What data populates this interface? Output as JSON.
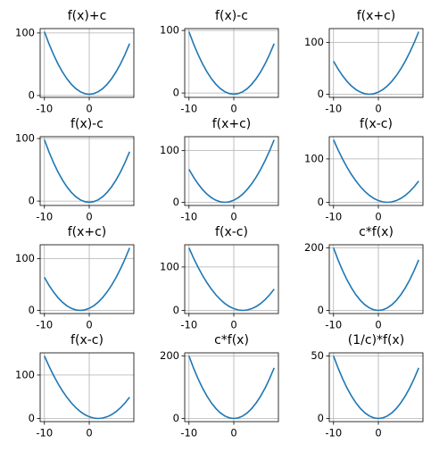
{
  "chart_data": [
    {
      "type": "line",
      "title": "f(x)+c",
      "color": "#1f77b4",
      "grid": true,
      "x": [
        -10,
        -9,
        -8,
        -7,
        -6,
        -5,
        -4,
        -3,
        -2,
        -1,
        0,
        1,
        2,
        3,
        4,
        5,
        6,
        7,
        8,
        9
      ],
      "values": [
        102,
        83,
        66,
        51,
        38,
        27,
        18,
        11,
        6,
        3,
        2,
        3,
        6,
        11,
        18,
        27,
        38,
        51,
        66,
        83
      ],
      "xlim": [
        -10.95,
        9.95
      ],
      "xticks": [
        -10,
        0
      ],
      "ylim": [
        -3,
        107
      ],
      "yticks": [
        0,
        100
      ]
    },
    {
      "type": "line",
      "title": "f(x)-c",
      "color": "#1f77b4",
      "grid": true,
      "x": [
        -10,
        -9,
        -8,
        -7,
        -6,
        -5,
        -4,
        -3,
        -2,
        -1,
        0,
        1,
        2,
        3,
        4,
        5,
        6,
        7,
        8,
        9
      ],
      "values": [
        98,
        79,
        62,
        47,
        34,
        23,
        14,
        7,
        2,
        -1,
        -2,
        -1,
        2,
        7,
        14,
        23,
        34,
        47,
        62,
        79
      ],
      "xlim": [
        -10.95,
        9.95
      ],
      "xticks": [
        -10,
        0
      ],
      "ylim": [
        -7,
        103
      ],
      "yticks": [
        0,
        100
      ]
    },
    {
      "type": "line",
      "title": "f(x+c)",
      "color": "#1f77b4",
      "grid": true,
      "x": [
        -10,
        -9,
        -8,
        -7,
        -6,
        -5,
        -4,
        -3,
        -2,
        -1,
        0,
        1,
        2,
        3,
        4,
        5,
        6,
        7,
        8,
        9
      ],
      "values": [
        64,
        49,
        36,
        25,
        16,
        9,
        4,
        1,
        0,
        1,
        4,
        9,
        16,
        25,
        36,
        49,
        64,
        81,
        100,
        121
      ],
      "xlim": [
        -10.95,
        9.95
      ],
      "xticks": [
        -10,
        0
      ],
      "ylim": [
        -6.05,
        127.05
      ],
      "yticks": [
        0,
        100
      ]
    },
    {
      "type": "line",
      "title": "f(x)-c",
      "color": "#1f77b4",
      "grid": true,
      "x": [
        -10,
        -9,
        -8,
        -7,
        -6,
        -5,
        -4,
        -3,
        -2,
        -1,
        0,
        1,
        2,
        3,
        4,
        5,
        6,
        7,
        8,
        9
      ],
      "values": [
        98,
        79,
        62,
        47,
        34,
        23,
        14,
        7,
        2,
        -1,
        -2,
        -1,
        2,
        7,
        14,
        23,
        34,
        47,
        62,
        79
      ],
      "xlim": [
        -10.95,
        9.95
      ],
      "xticks": [
        -10,
        0
      ],
      "ylim": [
        -7,
        103
      ],
      "yticks": [
        0,
        100
      ]
    },
    {
      "type": "line",
      "title": "f(x+c)",
      "color": "#1f77b4",
      "grid": true,
      "x": [
        -10,
        -9,
        -8,
        -7,
        -6,
        -5,
        -4,
        -3,
        -2,
        -1,
        0,
        1,
        2,
        3,
        4,
        5,
        6,
        7,
        8,
        9
      ],
      "values": [
        64,
        49,
        36,
        25,
        16,
        9,
        4,
        1,
        0,
        1,
        4,
        9,
        16,
        25,
        36,
        49,
        64,
        81,
        100,
        121
      ],
      "xlim": [
        -10.95,
        9.95
      ],
      "xticks": [
        -10,
        0
      ],
      "ylim": [
        -6.05,
        127.05
      ],
      "yticks": [
        0,
        100
      ]
    },
    {
      "type": "line",
      "title": "f(x-c)",
      "color": "#1f77b4",
      "grid": true,
      "x": [
        -10,
        -9,
        -8,
        -7,
        -6,
        -5,
        -4,
        -3,
        -2,
        -1,
        0,
        1,
        2,
        3,
        4,
        5,
        6,
        7,
        8,
        9
      ],
      "values": [
        144,
        121,
        100,
        81,
        64,
        49,
        36,
        25,
        16,
        9,
        4,
        1,
        0,
        1,
        4,
        9,
        16,
        25,
        36,
        49
      ],
      "xlim": [
        -10.95,
        9.95
      ],
      "xticks": [
        -10,
        0
      ],
      "ylim": [
        -7.2,
        151.2
      ],
      "yticks": [
        0,
        100
      ]
    },
    {
      "type": "line",
      "title": "f(x+c)",
      "color": "#1f77b4",
      "grid": true,
      "x": [
        -10,
        -9,
        -8,
        -7,
        -6,
        -5,
        -4,
        -3,
        -2,
        -1,
        0,
        1,
        2,
        3,
        4,
        5,
        6,
        7,
        8,
        9
      ],
      "values": [
        64,
        49,
        36,
        25,
        16,
        9,
        4,
        1,
        0,
        1,
        4,
        9,
        16,
        25,
        36,
        49,
        64,
        81,
        100,
        121
      ],
      "xlim": [
        -10.95,
        9.95
      ],
      "xticks": [
        -10,
        0
      ],
      "ylim": [
        -6.05,
        127.05
      ],
      "yticks": [
        0,
        100
      ]
    },
    {
      "type": "line",
      "title": "f(x-c)",
      "color": "#1f77b4",
      "grid": true,
      "x": [
        -10,
        -9,
        -8,
        -7,
        -6,
        -5,
        -4,
        -3,
        -2,
        -1,
        0,
        1,
        2,
        3,
        4,
        5,
        6,
        7,
        8,
        9
      ],
      "values": [
        144,
        121,
        100,
        81,
        64,
        49,
        36,
        25,
        16,
        9,
        4,
        1,
        0,
        1,
        4,
        9,
        16,
        25,
        36,
        49
      ],
      "xlim": [
        -10.95,
        9.95
      ],
      "xticks": [
        -10,
        0
      ],
      "ylim": [
        -7.2,
        151.2
      ],
      "yticks": [
        0,
        100
      ]
    },
    {
      "type": "line",
      "title": "c*f(x)",
      "color": "#1f77b4",
      "grid": true,
      "x": [
        -10,
        -9,
        -8,
        -7,
        -6,
        -5,
        -4,
        -3,
        -2,
        -1,
        0,
        1,
        2,
        3,
        4,
        5,
        6,
        7,
        8,
        9
      ],
      "values": [
        200,
        162,
        128,
        98,
        72,
        50,
        32,
        18,
        8,
        2,
        0,
        2,
        8,
        18,
        32,
        50,
        72,
        98,
        128,
        162
      ],
      "xlim": [
        -10.95,
        9.95
      ],
      "xticks": [
        -10,
        0
      ],
      "ylim": [
        -10,
        210
      ],
      "yticks": [
        0,
        200
      ]
    },
    {
      "type": "line",
      "title": "f(x-c)",
      "color": "#1f77b4",
      "grid": true,
      "x": [
        -10,
        -9,
        -8,
        -7,
        -6,
        -5,
        -4,
        -3,
        -2,
        -1,
        0,
        1,
        2,
        3,
        4,
        5,
        6,
        7,
        8,
        9
      ],
      "values": [
        144,
        121,
        100,
        81,
        64,
        49,
        36,
        25,
        16,
        9,
        4,
        1,
        0,
        1,
        4,
        9,
        16,
        25,
        36,
        49
      ],
      "xlim": [
        -10.95,
        9.95
      ],
      "xticks": [
        -10,
        0
      ],
      "ylim": [
        -7.2,
        151.2
      ],
      "yticks": [
        0,
        100
      ]
    },
    {
      "type": "line",
      "title": "c*f(x)",
      "color": "#1f77b4",
      "grid": true,
      "x": [
        -10,
        -9,
        -8,
        -7,
        -6,
        -5,
        -4,
        -3,
        -2,
        -1,
        0,
        1,
        2,
        3,
        4,
        5,
        6,
        7,
        8,
        9
      ],
      "values": [
        200,
        162,
        128,
        98,
        72,
        50,
        32,
        18,
        8,
        2,
        0,
        2,
        8,
        18,
        32,
        50,
        72,
        98,
        128,
        162
      ],
      "xlim": [
        -10.95,
        9.95
      ],
      "xticks": [
        -10,
        0
      ],
      "ylim": [
        -10,
        210
      ],
      "yticks": [
        0,
        200
      ]
    },
    {
      "type": "line",
      "title": "(1/c)*f(x)",
      "color": "#1f77b4",
      "grid": true,
      "x": [
        -10,
        -9,
        -8,
        -7,
        -6,
        -5,
        -4,
        -3,
        -2,
        -1,
        0,
        1,
        2,
        3,
        4,
        5,
        6,
        7,
        8,
        9
      ],
      "values": [
        50,
        40.5,
        32,
        24.5,
        18,
        12.5,
        8,
        4.5,
        2,
        0.5,
        0,
        0.5,
        2,
        4.5,
        8,
        12.5,
        18,
        24.5,
        32,
        40.5
      ],
      "xlim": [
        -10.95,
        9.95
      ],
      "xticks": [
        -10,
        0
      ],
      "ylim": [
        -2.5,
        52.5
      ],
      "yticks": [
        0,
        50
      ]
    }
  ]
}
